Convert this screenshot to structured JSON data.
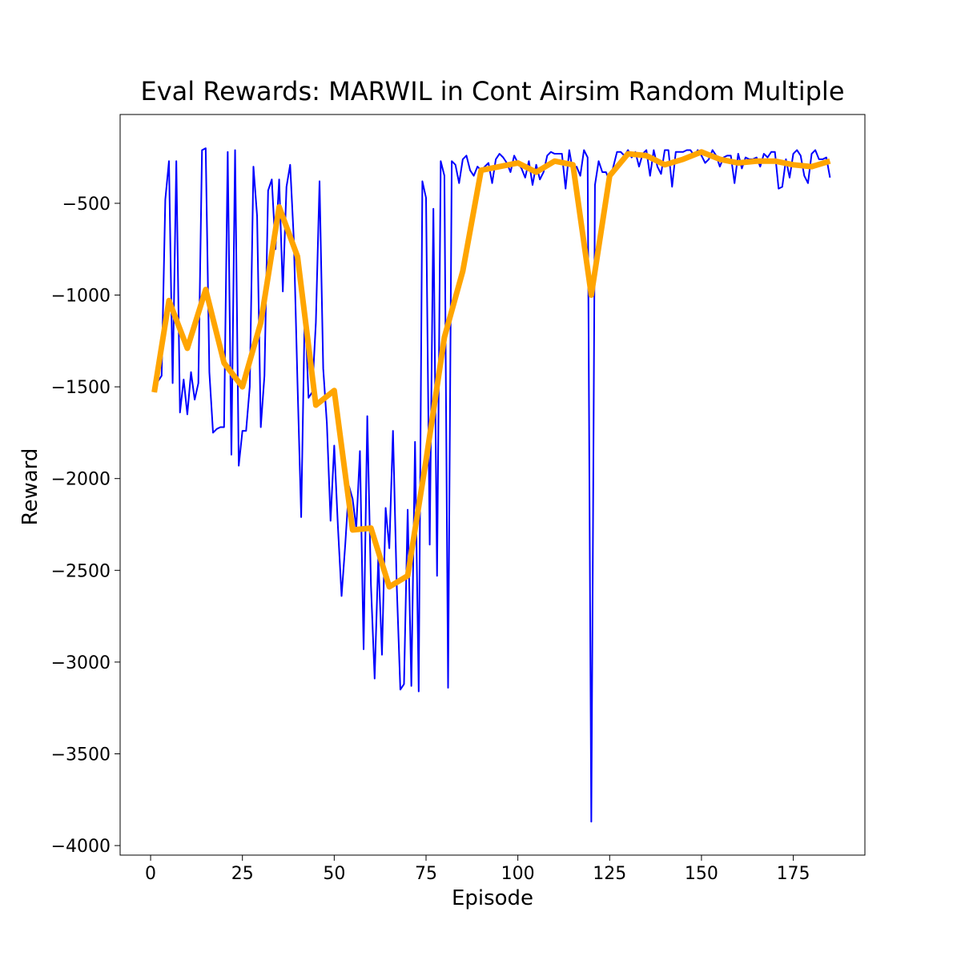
{
  "chart_data": {
    "type": "line",
    "title": "Eval Rewards: MARWIL in Cont Airsim Random Multiple",
    "x_label": "Episode",
    "y_label": "Reward",
    "xlim": [
      -8.3,
      194.5
    ],
    "xticks": [
      0,
      25,
      50,
      75,
      100,
      125,
      150,
      175
    ],
    "ylim": [
      -4052,
      -16
    ],
    "yticks": [
      {
        "value": -500,
        "label": "−500"
      },
      {
        "value": -1000,
        "label": "−1000"
      },
      {
        "value": -1500,
        "label": "−1500"
      },
      {
        "value": -2000,
        "label": "−2000"
      },
      {
        "value": -2500,
        "label": "−2500"
      },
      {
        "value": -3000,
        "label": "−3000"
      },
      {
        "value": -3500,
        "label": "−3500"
      },
      {
        "value": -4000,
        "label": "−4000"
      }
    ],
    "series": [
      {
        "color": "#0000ff",
        "width": 2,
        "x": [
          1,
          2,
          3,
          4,
          5,
          6,
          7,
          8,
          9,
          10,
          11,
          12,
          13,
          14,
          15,
          16,
          17,
          18,
          19,
          20,
          21,
          22,
          23,
          24,
          25,
          26,
          27,
          28,
          29,
          30,
          31,
          32,
          33,
          34,
          35,
          36,
          37,
          38,
          39,
          40,
          41,
          42,
          43,
          44,
          45,
          46,
          47,
          48,
          49,
          50,
          51,
          52,
          53,
          54,
          55,
          56,
          57,
          58,
          59,
          60,
          61,
          62,
          63,
          64,
          65,
          66,
          67,
          68,
          69,
          70,
          71,
          72,
          73,
          74,
          75,
          76,
          77,
          78,
          79,
          80,
          81,
          82,
          83,
          84,
          85,
          86,
          87,
          88,
          89,
          90,
          91,
          92,
          93,
          94,
          95,
          96,
          97,
          98,
          99,
          100,
          101,
          102,
          103,
          104,
          105,
          106,
          107,
          108,
          109,
          110,
          111,
          112,
          113,
          114,
          115,
          116,
          117,
          118,
          119,
          120,
          121,
          122,
          123,
          124,
          125,
          126,
          127,
          128,
          129,
          130,
          131,
          132,
          133,
          134,
          135,
          136,
          137,
          138,
          139,
          140,
          141,
          142,
          143,
          144,
          145,
          146,
          147,
          148,
          149,
          150,
          151,
          152,
          153,
          154,
          155,
          156,
          157,
          158,
          159,
          160,
          161,
          162,
          163,
          164,
          165,
          166,
          167,
          168,
          169,
          170,
          171,
          172,
          173,
          174,
          175,
          176,
          177,
          178,
          179,
          180,
          181,
          182,
          183,
          184,
          185
        ],
        "values": [
          -1530,
          -1470,
          -1440,
          -480,
          -270,
          -1480,
          -270,
          -1640,
          -1460,
          -1650,
          -1420,
          -1570,
          -1480,
          -210,
          -200,
          -1420,
          -1750,
          -1730,
          -1720,
          -1720,
          -220,
          -1870,
          -210,
          -1930,
          -1740,
          -1740,
          -1500,
          -300,
          -570,
          -1720,
          -1440,
          -430,
          -370,
          -750,
          -370,
          -980,
          -410,
          -290,
          -700,
          -1480,
          -2210,
          -1050,
          -1560,
          -1530,
          -1150,
          -380,
          -1400,
          -1700,
          -2230,
          -1820,
          -2260,
          -2640,
          -2360,
          -2040,
          -2110,
          -2270,
          -1850,
          -2930,
          -1660,
          -2580,
          -3090,
          -2430,
          -2960,
          -2160,
          -2380,
          -1740,
          -2570,
          -3150,
          -3120,
          -2170,
          -3130,
          -1800,
          -3160,
          -380,
          -470,
          -2360,
          -530,
          -2530,
          -270,
          -350,
          -3140,
          -270,
          -290,
          -390,
          -260,
          -240,
          -320,
          -350,
          -300,
          -320,
          -300,
          -280,
          -390,
          -260,
          -230,
          -250,
          -280,
          -330,
          -240,
          -280,
          -310,
          -360,
          -270,
          -400,
          -290,
          -370,
          -330,
          -240,
          -220,
          -230,
          -230,
          -230,
          -420,
          -210,
          -330,
          -300,
          -350,
          -210,
          -250,
          -3870,
          -400,
          -270,
          -330,
          -330,
          -380,
          -300,
          -220,
          -220,
          -240,
          -210,
          -250,
          -220,
          -300,
          -230,
          -210,
          -350,
          -210,
          -300,
          -340,
          -210,
          -210,
          -410,
          -220,
          -220,
          -220,
          -210,
          -210,
          -240,
          -210,
          -240,
          -280,
          -260,
          -210,
          -240,
          -300,
          -250,
          -240,
          -240,
          -390,
          -230,
          -310,
          -250,
          -260,
          -260,
          -250,
          -300,
          -230,
          -250,
          -220,
          -220,
          -420,
          -410,
          -260,
          -360,
          -230,
          -210,
          -240,
          -350,
          -390,
          -230,
          -210,
          -260,
          -260,
          -250,
          -360
        ]
      },
      {
        "color": "#ffa500",
        "width": 7,
        "x": [
          1,
          5,
          10,
          15,
          20,
          25,
          30,
          35,
          40,
          45,
          50,
          55,
          60,
          65,
          70,
          75,
          80,
          85,
          90,
          95,
          100,
          105,
          110,
          115,
          120,
          125,
          130,
          135,
          140,
          145,
          150,
          155,
          160,
          165,
          170,
          175,
          180,
          185
        ],
        "values": [
          -1530,
          -1030,
          -1290,
          -970,
          -1370,
          -1500,
          -1150,
          -520,
          -790,
          -1600,
          -1520,
          -2280,
          -2270,
          -2590,
          -2530,
          -1900,
          -1230,
          -870,
          -320,
          -300,
          -280,
          -330,
          -270,
          -290,
          -1000,
          -350,
          -230,
          -240,
          -290,
          -260,
          -220,
          -260,
          -280,
          -270,
          -270,
          -290,
          -300,
          -270
        ]
      }
    ]
  }
}
